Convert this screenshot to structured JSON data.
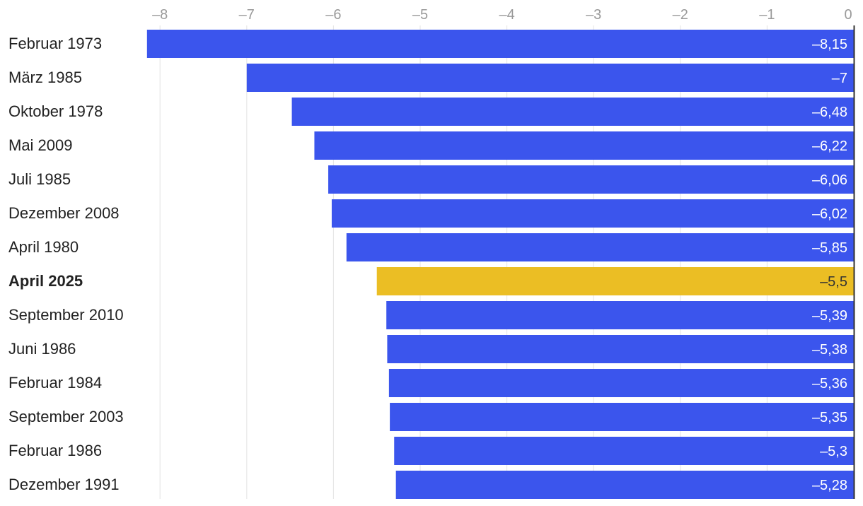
{
  "chart_data": {
    "type": "bar",
    "orientation": "horizontal",
    "title": "",
    "xlabel": "",
    "ylabel": "",
    "xlim": [
      -8.15,
      0
    ],
    "x_ticks": [
      -8,
      -7,
      -6,
      -5,
      -4,
      -3,
      -2,
      -1,
      0
    ],
    "x_tick_labels": [
      "–8",
      "–7",
      "–6",
      "–5",
      "–4",
      "–3",
      "–2",
      "–1",
      "0"
    ],
    "x_axis_position": "top",
    "grid": true,
    "legend": false,
    "categories": [
      "Februar 1973",
      "März 1985",
      "Oktober 1978",
      "Mai 2009",
      "Juli 1985",
      "Dezember 2008",
      "April 1980",
      "April 2025",
      "September 2010",
      "Juni 1986",
      "Februar 1984",
      "September 2003",
      "Februar 1986",
      "Dezember 1991"
    ],
    "values": [
      -8.15,
      -7,
      -6.48,
      -6.22,
      -6.06,
      -6.02,
      -5.85,
      -5.5,
      -5.39,
      -5.38,
      -5.36,
      -5.35,
      -5.3,
      -5.28
    ],
    "value_labels": [
      "–8,15",
      "–7",
      "–6,48",
      "–6,22",
      "–6,06",
      "–6,02",
      "–5,85",
      "–5,5",
      "–5,39",
      "–5,38",
      "–5,36",
      "–5,35",
      "–5,3",
      "–5,28"
    ],
    "highlight_index": 7,
    "colors": {
      "bar": "#3b55ed",
      "highlight": "#ebbe24",
      "value_text": "#ffffff",
      "highlight_value_text": "#333333",
      "grid": "#e3e3e3",
      "zero_line": "#333333"
    }
  }
}
